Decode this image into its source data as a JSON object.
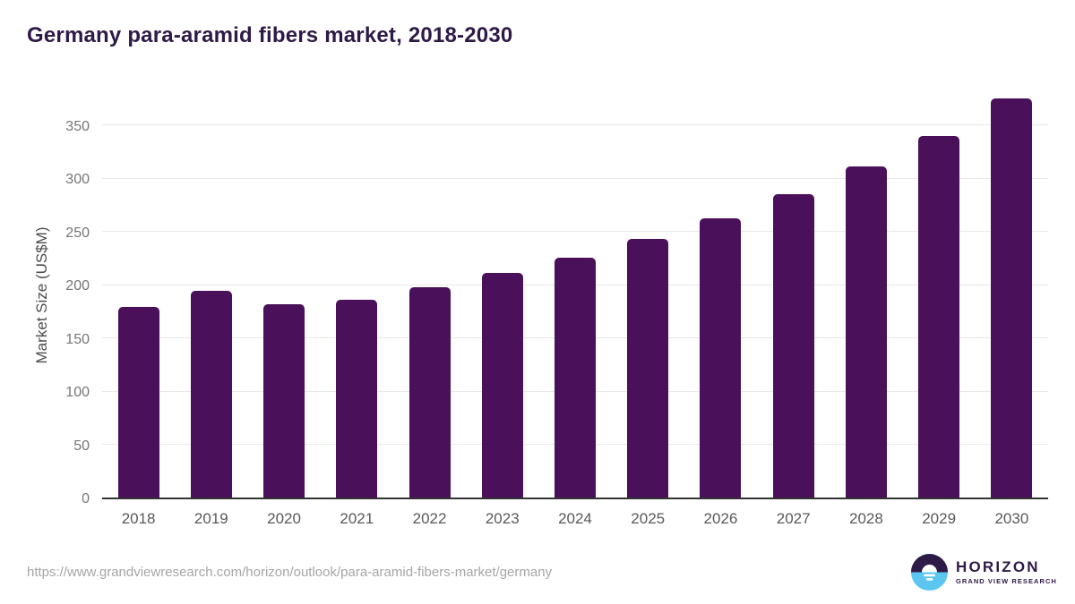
{
  "header": {
    "title": "Germany para-aramid fibers market, 2018-2030"
  },
  "footer": {
    "source_url": "https://www.grandviewresearch.com/horizon/outlook/para-aramid-fibers-market/germany",
    "logo": {
      "brand": "HORIZON",
      "tagline": "GRAND VIEW RESEARCH"
    }
  },
  "chart_data": {
    "type": "bar",
    "title": "Germany para-aramid fibers market, 2018-2030",
    "categories": [
      "2018",
      "2019",
      "2020",
      "2021",
      "2022",
      "2023",
      "2024",
      "2025",
      "2026",
      "2027",
      "2028",
      "2029",
      "2030"
    ],
    "values": [
      179,
      194,
      182,
      186,
      198,
      211,
      225,
      243,
      262,
      285,
      311,
      340,
      375
    ],
    "xlabel": "",
    "ylabel": "Market Size (US$M)",
    "ylim": [
      0,
      375
    ],
    "yticks": [
      0,
      50,
      100,
      150,
      200,
      250,
      300,
      350
    ],
    "grid": true,
    "legend_position": "none",
    "bar_color": "#4a1059",
    "colors": {
      "title": "#2e1a47",
      "axis_line": "#333333",
      "gridline": "#e9e9e9",
      "y_tick_label": "#757575",
      "x_tick_label": "#58595b",
      "axis_title": "#4d4d4d",
      "url_text": "#a6a6a6",
      "logo_dark": "#2e1a47",
      "logo_blue": "#5bc6f0"
    }
  }
}
